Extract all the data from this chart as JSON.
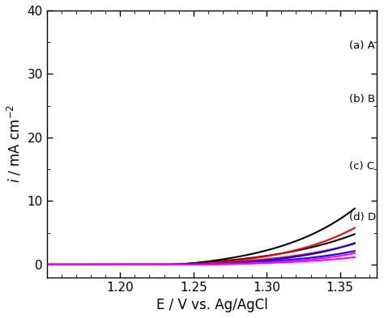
{
  "xlabel": "E / V vs. Ag/AgCl",
  "ylabel": "$i$ / mA cm$^{-2}$",
  "xlim": [
    1.15,
    1.375
  ],
  "ylim": [
    -2,
    40
  ],
  "yticks": [
    0,
    10,
    20,
    30,
    40
  ],
  "xticks": [
    1.2,
    1.25,
    1.3,
    1.35
  ],
  "labels": [
    "(a) A",
    "(b) B",
    "(c) C",
    "(d) D"
  ],
  "colors": [
    "black",
    "red",
    "blue",
    "magenta"
  ],
  "background_color": "#ffffff",
  "figsize": [
    4.74,
    3.93
  ],
  "dpi": 100,
  "curves": [
    {
      "E_onset_fwd": 1.24,
      "alpha_fwd": 18,
      "i_scale_fwd": 1.15,
      "E_onset_rev": 1.235,
      "alpha_rev": 16,
      "i_scale_rev": 0.75
    },
    {
      "E_onset_fwd": 1.248,
      "alpha_fwd": 19,
      "i_scale_fwd": 0.78,
      "E_onset_rev": 1.243,
      "alpha_rev": 17,
      "i_scale_rev": 0.52
    },
    {
      "E_onset_fwd": 1.255,
      "alpha_fwd": 21,
      "i_scale_fwd": 0.42,
      "E_onset_rev": 1.25,
      "alpha_rev": 19,
      "i_scale_rev": 0.3
    },
    {
      "E_onset_fwd": 1.26,
      "alpha_fwd": 22,
      "i_scale_fwd": 0.22,
      "E_onset_rev": 1.255,
      "alpha_rev": 20,
      "i_scale_rev": 0.16
    }
  ]
}
